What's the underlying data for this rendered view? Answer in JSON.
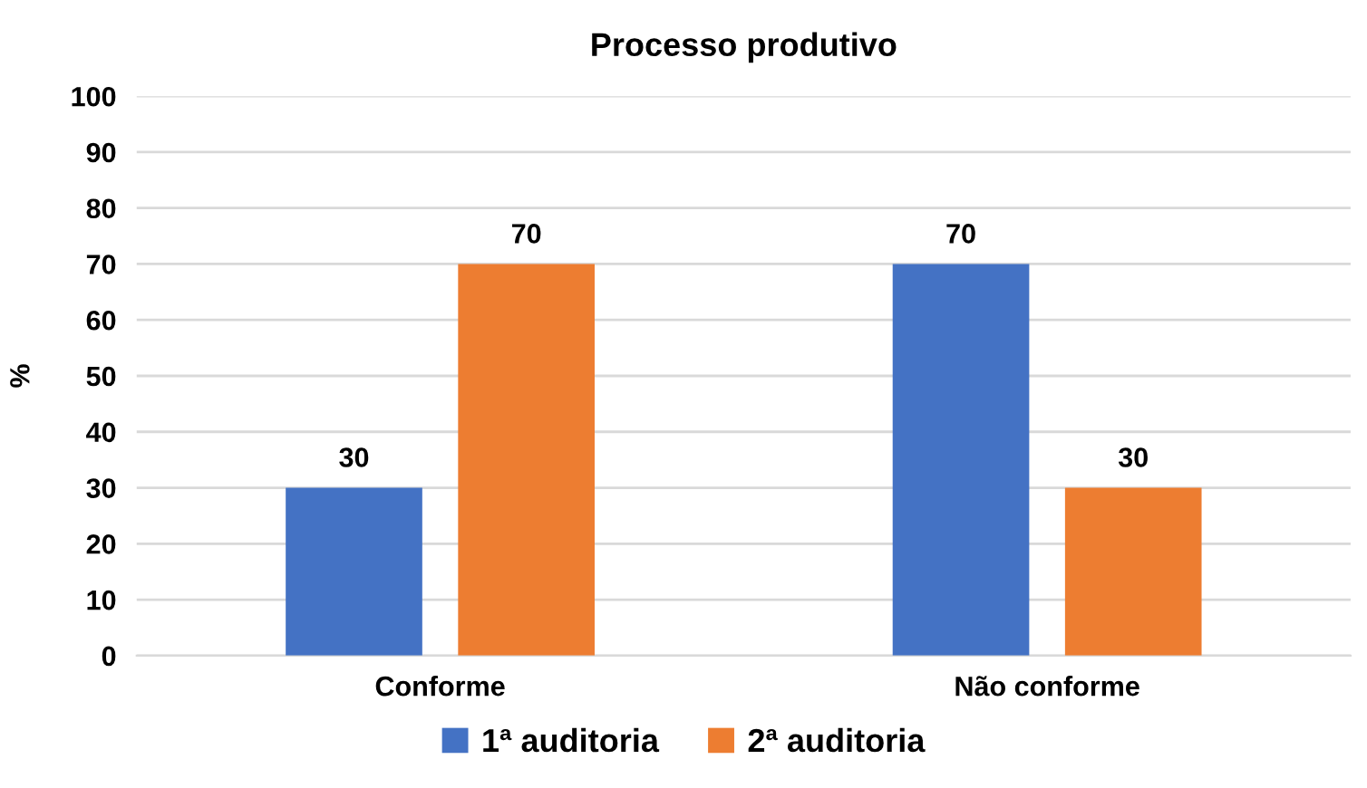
{
  "chart_data": {
    "type": "bar",
    "title": "Processo produtivo",
    "ylabel": "%",
    "categories": [
      "Conforme",
      "Não conforme"
    ],
    "series": [
      {
        "name": "1ª auditoria",
        "color": "#4472c4",
        "values": [
          30,
          70
        ]
      },
      {
        "name": "2ª auditoria",
        "color": "#ed7d31",
        "values": [
          70,
          30
        ]
      }
    ],
    "ylim": [
      0,
      100
    ],
    "yticks": [
      0,
      10,
      20,
      30,
      40,
      50,
      60,
      70,
      80,
      90,
      100
    ],
    "grid": "y",
    "legend": "bottom",
    "data_labels": true
  }
}
